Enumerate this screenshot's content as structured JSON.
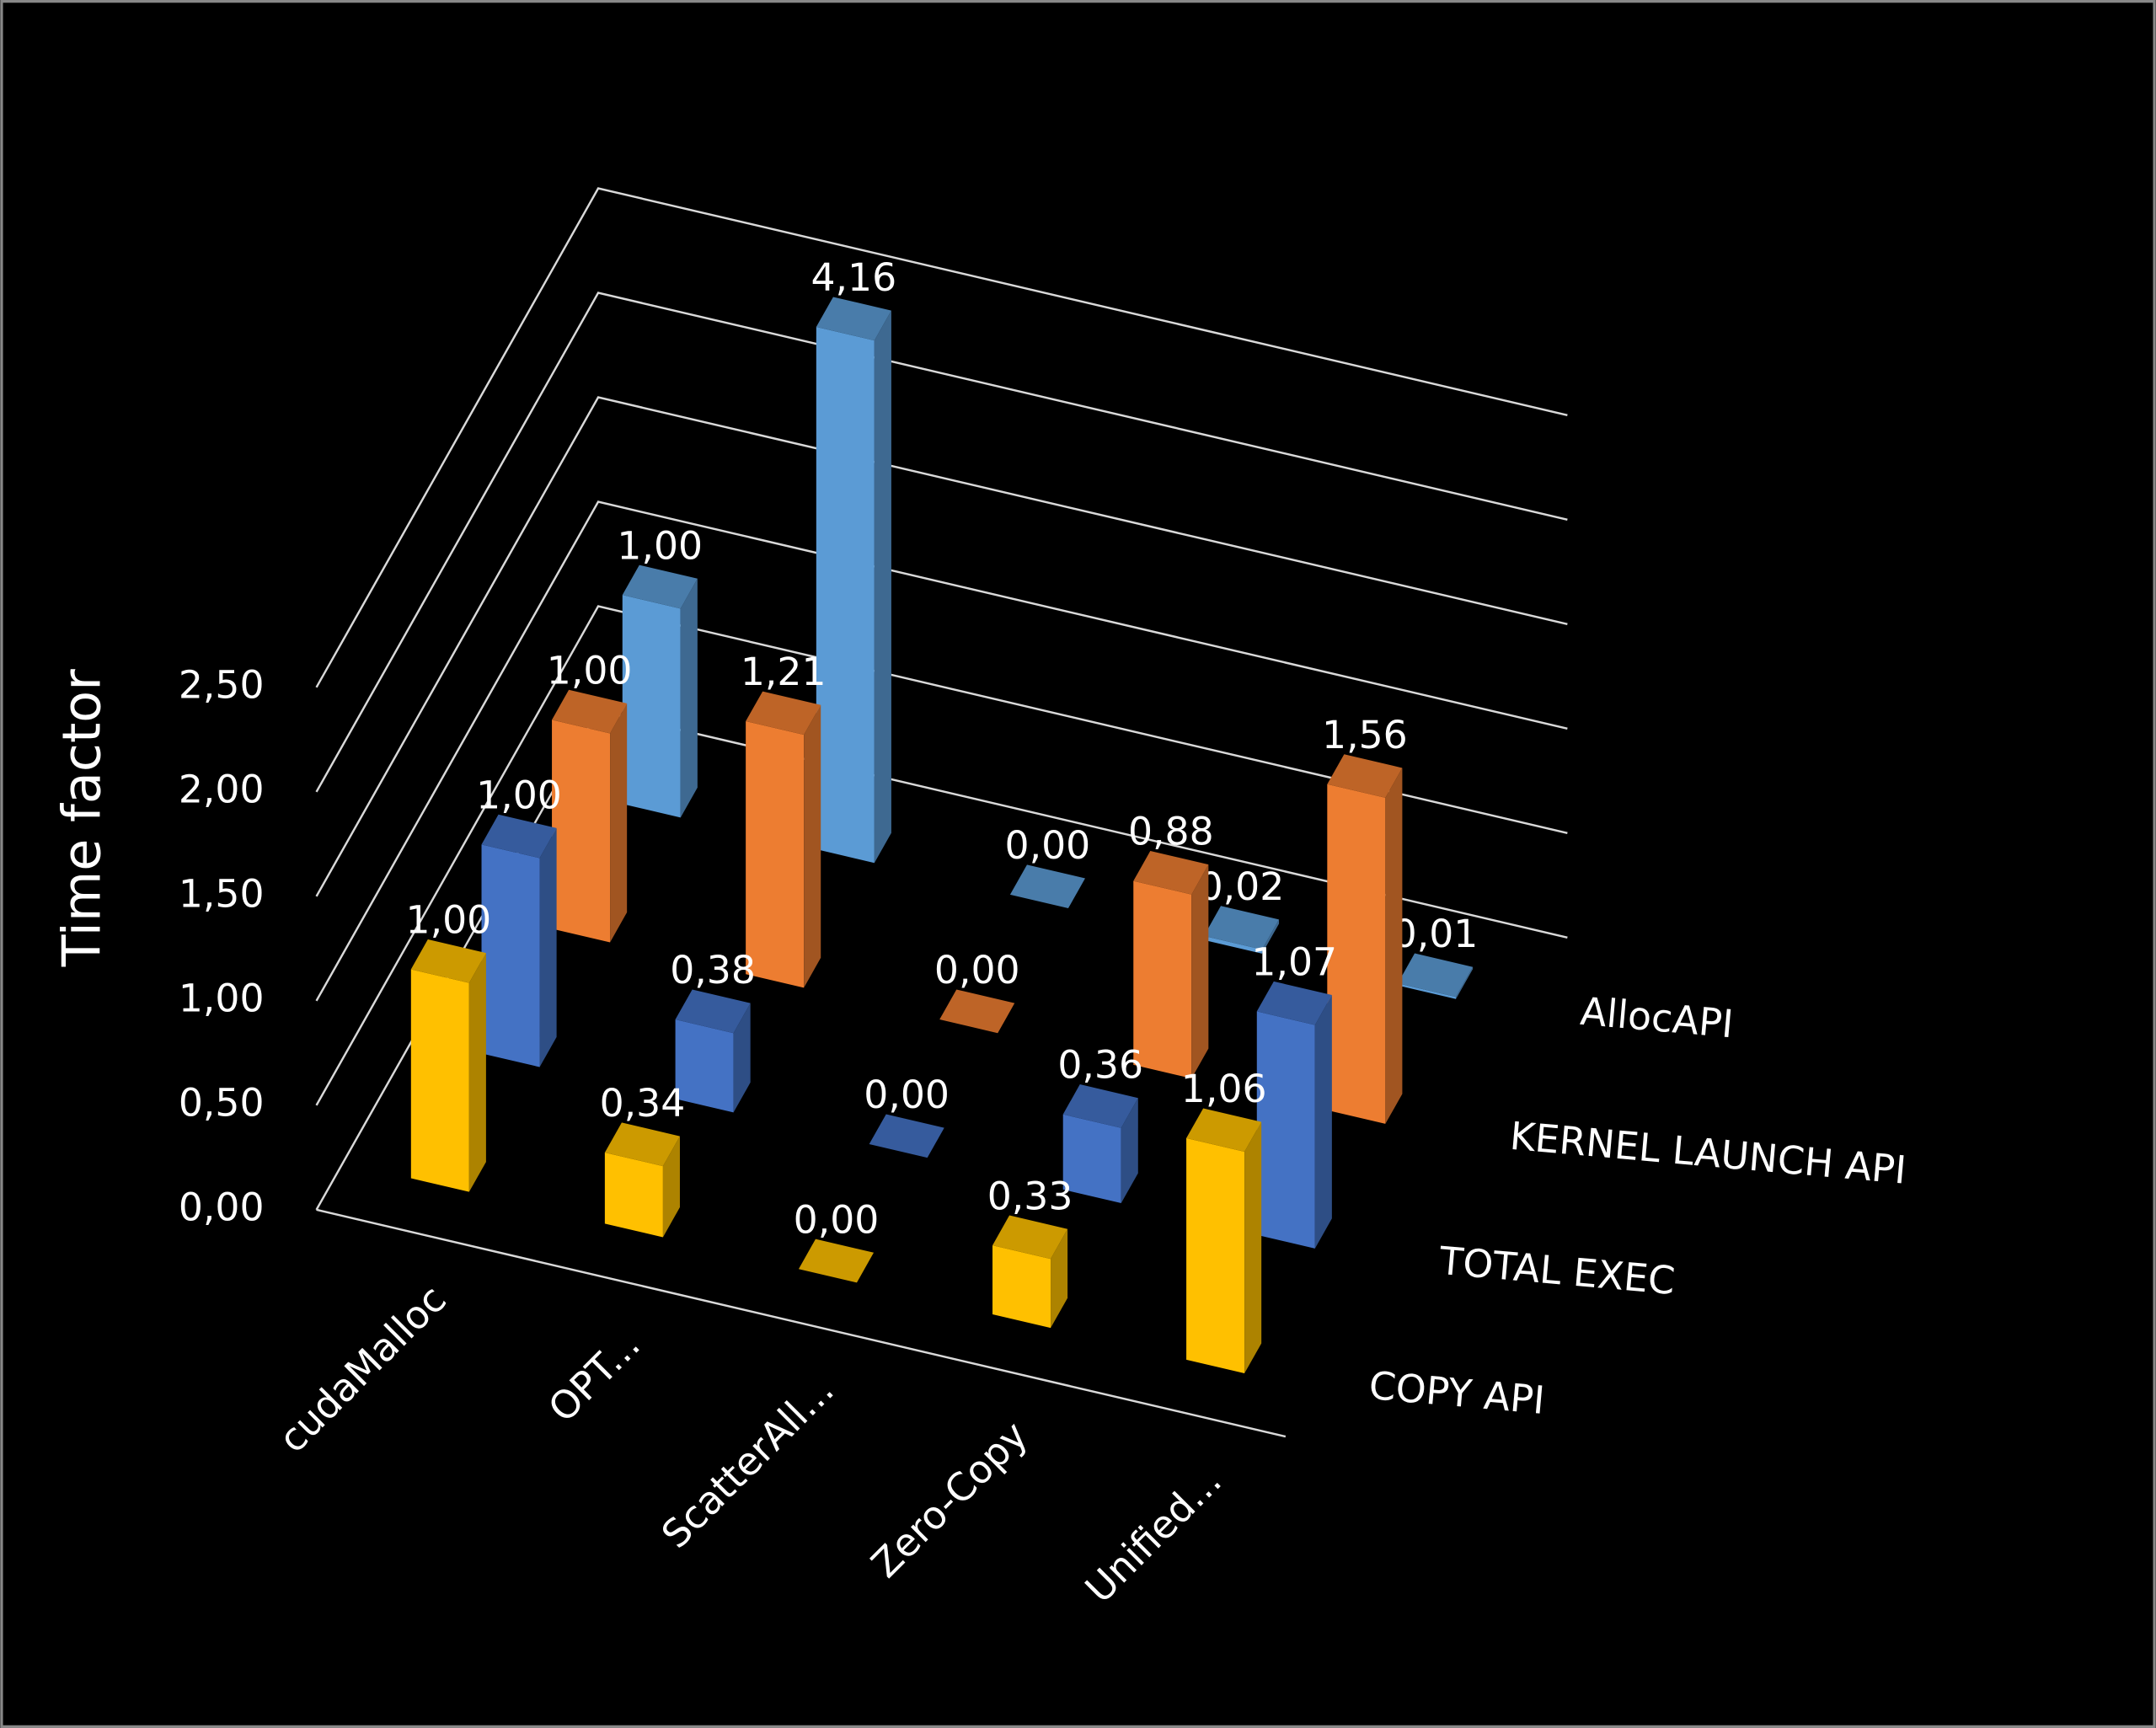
{
  "chart_data": {
    "type": "bar3d",
    "y_label": "Time factor",
    "categories": [
      "cudaMalloc",
      "OPT...",
      "ScatterAll...",
      "Zero-Copy",
      "Unified..."
    ],
    "series": [
      {
        "name": "COPY API",
        "color": "#FFC000",
        "values": [
          1.0,
          0.34,
          0.0,
          0.33,
          1.06
        ],
        "value_labels": [
          "1,00",
          "0,34",
          "0,00",
          "0,33",
          "1,06"
        ]
      },
      {
        "name": "TOTAL EXEC",
        "color": "#4472C4",
        "values": [
          1.0,
          0.38,
          0.0,
          0.36,
          1.07
        ],
        "value_labels": [
          "1,00",
          "0,38",
          "0,00",
          "0,36",
          "1,07"
        ]
      },
      {
        "name": "KERNEL LAUNCH API",
        "color": "#ED7D31",
        "values": [
          1.0,
          1.21,
          0.0,
          0.88,
          1.56
        ],
        "value_labels": [
          "1,00",
          "1,21",
          "0,00",
          "0,88",
          "1,56"
        ]
      },
      {
        "name": "AllocAPI",
        "color": "#5B9BD5",
        "values": [
          1.0,
          4.16,
          0.0,
          0.02,
          0.01
        ],
        "value_labels": [
          "1,00",
          "4,16",
          "0,00",
          "0,02",
          "0,01"
        ]
      }
    ],
    "ylim": [
      0,
      2.5
    ],
    "yticks": [
      {
        "value": 0,
        "label": "0,00"
      },
      {
        "value": 0.5,
        "label": "0,50"
      },
      {
        "value": 1,
        "label": "1,00"
      },
      {
        "value": 1.5,
        "label": "1,50"
      },
      {
        "value": 2,
        "label": "2,00"
      },
      {
        "value": 2.5,
        "label": "2,50"
      }
    ],
    "grid": true
  }
}
